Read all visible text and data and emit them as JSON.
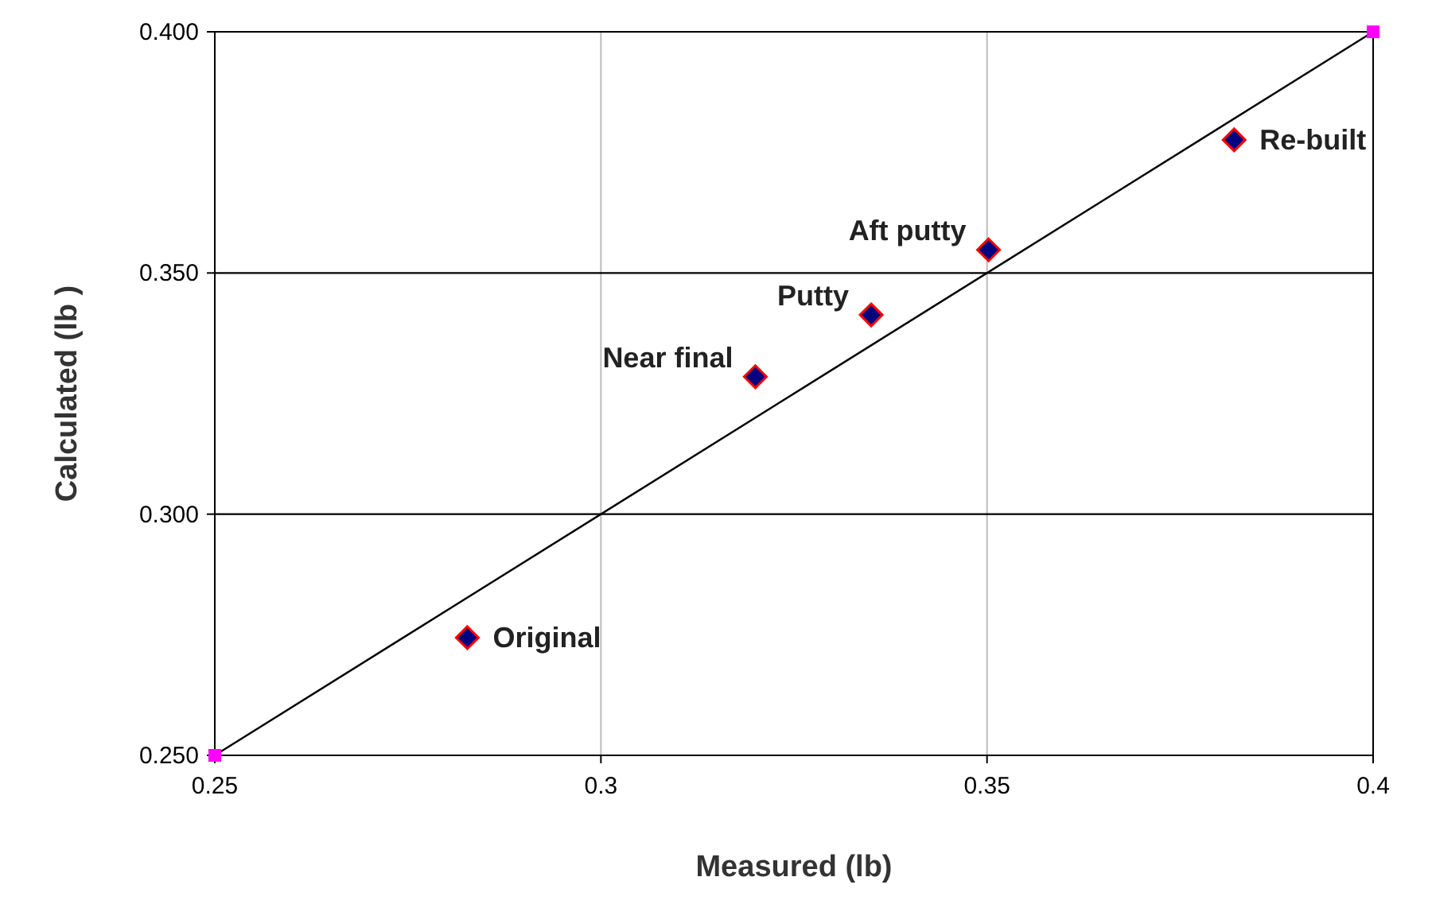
{
  "chart_data": {
    "type": "scatter",
    "xlabel": "Measured (lb)",
    "ylabel": "Calculated (lb )",
    "xlim": [
      0.25,
      0.4
    ],
    "ylim": [
      0.25,
      0.4
    ],
    "xticks": [
      0.25,
      0.3,
      0.35,
      0.4
    ],
    "yticks": [
      {
        "value": 0.25,
        "label": "0.250"
      },
      {
        "value": 0.3,
        "label": "0.300"
      },
      {
        "value": 0.35,
        "label": "0.350"
      },
      {
        "value": 0.4,
        "label": "0.400"
      }
    ],
    "grid": true,
    "series": [
      {
        "type": "line",
        "color": "#000000",
        "x": [
          0.25,
          0.4
        ],
        "values": [
          0.25,
          0.4
        ],
        "marker": "none"
      },
      {
        "color": "#ff00ff",
        "x": [
          0.25,
          0.4
        ],
        "values": [
          0.25,
          0.4
        ],
        "marker": "square"
      },
      {
        "color": "#000080",
        "x": [
          0.2827,
          0.32,
          0.335,
          0.3502,
          0.382
        ],
        "values": [
          0.2744,
          0.3285,
          0.3413,
          0.3548,
          0.3776
        ],
        "marker": "diamond"
      }
    ],
    "annotations": [
      {
        "text": "Original",
        "x": 0.2827,
        "y": 0.2744
      },
      {
        "text": "Near final",
        "x": 0.32,
        "y": 0.3285
      },
      {
        "text": "Putty",
        "x": 0.335,
        "y": 0.3413
      },
      {
        "text": "Aft putty",
        "x": 0.3502,
        "y": 0.3548
      },
      {
        "text": "Re-built",
        "x": 0.382,
        "y": 0.3776
      }
    ]
  }
}
